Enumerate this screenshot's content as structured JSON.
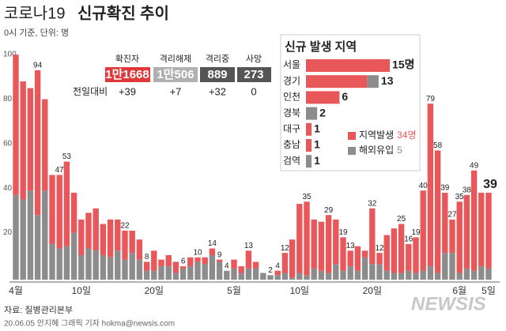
{
  "header": {
    "title_a": "코로나19",
    "title_b": "신규확진 추이",
    "subtitle": "0시 기준, 단위: 명"
  },
  "summary": {
    "columns": [
      "확진자",
      "격리해제",
      "격리중",
      "사망"
    ],
    "values": [
      "1만1668",
      "1만506",
      "889",
      "273"
    ],
    "diff_label": "전일대비",
    "diffs": [
      "+39",
      "+7",
      "+32",
      "0"
    ]
  },
  "chart_data": {
    "type": "stacked_bar",
    "categories": [
      "4월",
      null,
      null,
      null,
      null,
      null,
      null,
      null,
      null,
      "10일",
      null,
      null,
      null,
      null,
      null,
      null,
      null,
      null,
      null,
      "20일",
      null,
      null,
      null,
      null,
      null,
      null,
      null,
      null,
      null,
      null,
      "5월",
      null,
      null,
      null,
      null,
      null,
      null,
      null,
      null,
      "10일",
      null,
      null,
      null,
      null,
      null,
      null,
      null,
      null,
      null,
      "20일",
      null,
      null,
      null,
      null,
      null,
      null,
      null,
      null,
      null,
      null,
      null,
      "6월",
      null,
      null,
      null,
      "5일"
    ],
    "series": [
      {
        "color": "#8c8c8c",
        "values": [
          38,
          36,
          40,
          29,
          40,
          16,
          14,
          15,
          21,
          11,
          14,
          13,
          11,
          10,
          13,
          9,
          12,
          9,
          4,
          4,
          6,
          6,
          3,
          5,
          6,
          8,
          7,
          11,
          8,
          4,
          5,
          3,
          5,
          5,
          3,
          2,
          2,
          3,
          1,
          3,
          2,
          5,
          4,
          3,
          7,
          4,
          6,
          4,
          10,
          7,
          7,
          4,
          3,
          3,
          4,
          3,
          4,
          6,
          3,
          12,
          12,
          3,
          5,
          4,
          6,
          5
        ]
      },
      {
        "color": "#e8585a",
        "values": [
          63,
          53,
          46,
          65,
          41,
          31,
          33,
          38,
          18,
          16,
          16,
          19,
          14,
          17,
          14,
          13,
          10,
          9,
          4,
          9,
          3,
          5,
          5,
          1,
          4,
          2,
          3,
          3,
          1,
          0,
          4,
          3,
          8,
          3,
          0,
          0,
          2,
          9,
          17,
          31,
          33,
          22,
          22,
          26,
          20,
          15,
          7,
          11,
          3,
          25,
          5,
          16,
          20,
          22,
          12,
          16,
          36,
          73,
          55,
          27,
          15,
          32,
          33,
          45,
          33,
          34
        ]
      }
    ],
    "total_labels": [
      null,
      null,
      null,
      94,
      null,
      null,
      47,
      53,
      null,
      null,
      null,
      null,
      null,
      null,
      null,
      22,
      null,
      null,
      8,
      null,
      null,
      null,
      null,
      6,
      null,
      10,
      null,
      14,
      9,
      4,
      null,
      null,
      13,
      null,
      null,
      2,
      4,
      12,
      null,
      null,
      35,
      null,
      null,
      29,
      null,
      19,
      13,
      null,
      null,
      32,
      12,
      null,
      null,
      25,
      16,
      19,
      40,
      79,
      58,
      39,
      27,
      35,
      38,
      49,
      null,
      39
    ],
    "ylim": [
      0,
      100
    ],
    "yticks": [
      20,
      40,
      60,
      80,
      100
    ]
  },
  "inset": {
    "title": "신규 발생 지역",
    "type": "stacked_bar",
    "orientation": "horizontal",
    "categories": [
      "서울",
      "경기",
      "인천",
      "경북",
      "대구",
      "충남",
      "검역"
    ],
    "series": [
      {
        "name": "지역발생",
        "color": "#e8585a",
        "values": [
          15,
          11,
          6,
          0,
          1,
          1,
          0
        ],
        "total_label": "34명"
      },
      {
        "name": "해외유입",
        "color": "#8c8c8c",
        "values": [
          0,
          2,
          0,
          2,
          0,
          0,
          1
        ],
        "total_label": "5"
      }
    ],
    "value_labels": [
      "15명",
      "13",
      "6",
      "2",
      "1",
      "1",
      "1"
    ]
  },
  "footer": {
    "source": "자료: 질병관리본부",
    "credit": "20.06.05 안지혜 그래픽 기자 hokma@newsis.com",
    "logo": "NEWSIS"
  }
}
